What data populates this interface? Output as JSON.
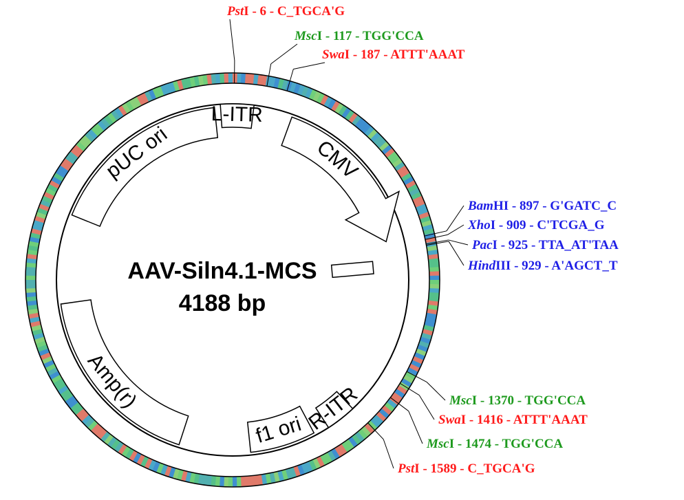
{
  "plasmid": {
    "name": "AAV-Siln4.1-MCS",
    "size_label": "4188 bp",
    "length": 4188,
    "separator": " - ",
    "features": [
      {
        "label": "pUC ori",
        "start_angle": -68,
        "end_angle": -6,
        "arrow": false
      },
      {
        "label": "L-ITR",
        "start_angle": -4,
        "end_angle": 7,
        "arrow": false,
        "small": true
      },
      {
        "label": "CMV",
        "start_angle": 20,
        "end_angle": 62,
        "arrow": true
      },
      {
        "label": "R-ITR",
        "start_angle": 137,
        "end_angle": 147,
        "arrow": false,
        "small": true
      },
      {
        "label": "f1 ori",
        "start_angle": 152,
        "end_angle": 174,
        "arrow": false
      },
      {
        "label": "Amp(r)",
        "start_angle": 198,
        "end_angle": 262,
        "arrow": false
      }
    ],
    "sites": [
      {
        "italic": "Pst",
        "rest": "I",
        "position": 6,
        "sequence": "C_TGCA'G",
        "color": "#ff1a1a"
      },
      {
        "italic": "Msc",
        "rest": "I",
        "position": 117,
        "sequence": "TGG'CCA",
        "color": "#1e9a1e"
      },
      {
        "italic": "Swa",
        "rest": "I",
        "position": 187,
        "sequence": "ATTT'AAAT",
        "color": "#ff1a1a"
      },
      {
        "italic": "Bam",
        "rest": "HI",
        "position": 897,
        "sequence": "G'GATC_C",
        "color": "#1f1fe6"
      },
      {
        "italic": "Xho",
        "rest": "I",
        "position": 909,
        "sequence": "C'TCGA_G",
        "color": "#1f1fe6"
      },
      {
        "italic": "Pac",
        "rest": "I",
        "position": 925,
        "sequence": "TTA_AT'TAA",
        "color": "#1f1fe6"
      },
      {
        "italic": "Hind",
        "rest": "III",
        "position": 929,
        "sequence": "A'AGCT_T",
        "color": "#1f1fe6"
      },
      {
        "italic": "Msc",
        "rest": "I",
        "position": 1370,
        "sequence": "TGG'CCA",
        "color": "#1e9a1e"
      },
      {
        "italic": "Swa",
        "rest": "I",
        "position": 1416,
        "sequence": "ATTT'AAAT",
        "color": "#ff1a1a"
      },
      {
        "italic": "Msc",
        "rest": "I",
        "position": 1474,
        "sequence": "TGG'CCA",
        "color": "#1e9a1e"
      },
      {
        "italic": "Pst",
        "rest": "I",
        "position": 1589,
        "sequence": "C_TGCA'G",
        "color": "#ff1a1a"
      }
    ]
  }
}
